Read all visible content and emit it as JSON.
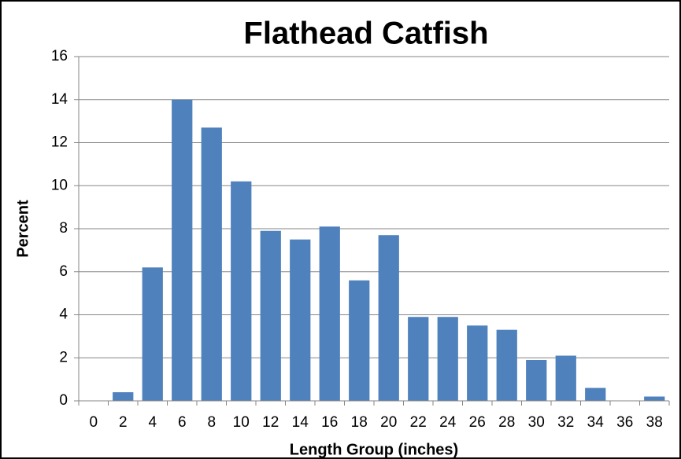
{
  "chart_data": {
    "type": "bar",
    "title": "Flathead Catfish",
    "x_label": "Length Group (inches)",
    "y_label": "Percent",
    "categories": [
      "0",
      "2",
      "4",
      "6",
      "8",
      "10",
      "12",
      "14",
      "16",
      "18",
      "20",
      "22",
      "24",
      "26",
      "28",
      "30",
      "32",
      "34",
      "36",
      "38"
    ],
    "values": [
      0,
      0.4,
      6.2,
      14.0,
      12.7,
      10.2,
      7.9,
      7.5,
      8.1,
      5.6,
      7.7,
      3.9,
      3.9,
      3.5,
      3.3,
      1.9,
      2.1,
      0.6,
      0,
      0.2
    ],
    "color": "#4f81bd",
    "ylim": [
      0,
      16
    ],
    "yticks": [
      0,
      2,
      4,
      6,
      8,
      10,
      12,
      14,
      16
    ],
    "grid": true
  }
}
